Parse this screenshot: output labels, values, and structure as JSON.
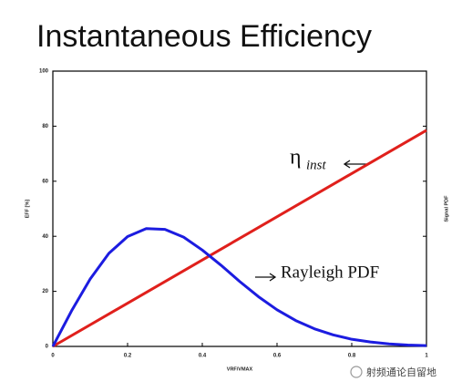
{
  "chart_data": {
    "type": "line",
    "title": "Instantaneous Efficiency",
    "xlabel": "VRF/VMAX",
    "ylabel": "EFF [%]",
    "y2label": "Signal PDF",
    "xlim": [
      0,
      1
    ],
    "xticks": [
      0,
      0.2,
      0.4,
      0.6,
      0.8,
      1
    ],
    "ylim": [
      0,
      100
    ],
    "yticks": [
      0,
      20,
      40,
      60,
      80,
      100
    ],
    "series": [
      {
        "name": "ηinst",
        "color": "#e0201c",
        "x": [
          0,
          1
        ],
        "values": [
          0,
          78.5
        ]
      },
      {
        "name": "Rayleigh PDF",
        "color": "#1c1ce0",
        "x": [
          0,
          0.05,
          0.1,
          0.15,
          0.2,
          0.25,
          0.3,
          0.35,
          0.4,
          0.45,
          0.5,
          0.55,
          0.6,
          0.65,
          0.7,
          0.75,
          0.8,
          0.85,
          0.9,
          0.95,
          1
        ],
        "values": [
          0,
          12.9,
          24.5,
          33.8,
          39.9,
          42.8,
          42.5,
          39.7,
          35.0,
          29.5,
          23.6,
          18.1,
          13.3,
          9.4,
          6.4,
          4.2,
          2.6,
          1.6,
          0.9,
          0.5,
          0.3
        ]
      }
    ],
    "annotations": [
      {
        "text": "η",
        "sub": "inst"
      },
      {
        "text": "Rayleigh PDF"
      }
    ],
    "watermark": "射频通论自留地"
  }
}
